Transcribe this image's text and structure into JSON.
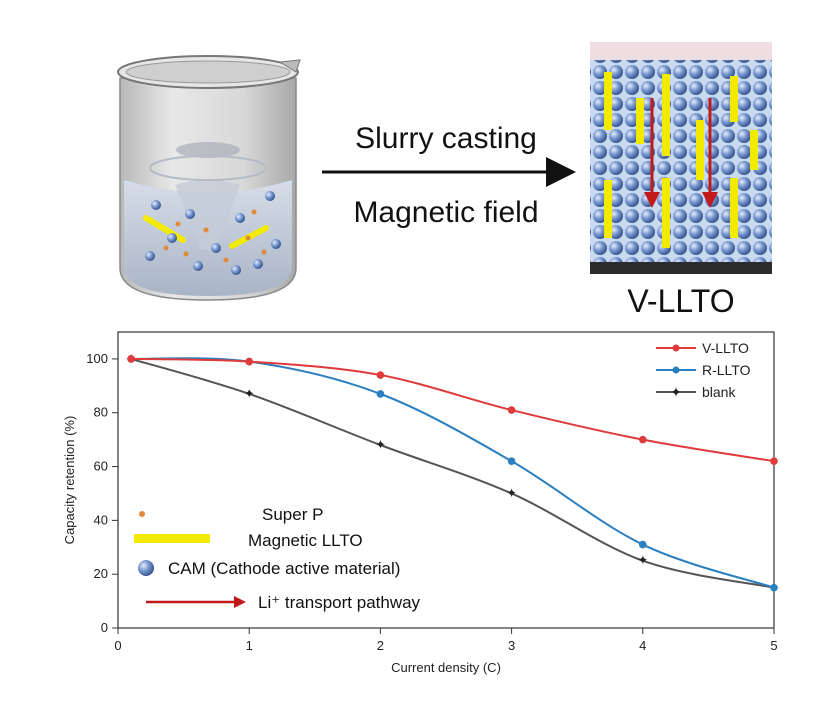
{
  "top": {
    "process_label_1": "Slurry casting",
    "process_label_2": "Magnetic field",
    "electrode_label": "V-LLTO"
  },
  "legend_materials": {
    "super_p": "Super P",
    "magnetic_llto": "Magnetic LLTO",
    "cam": "CAM  (Cathode active material)",
    "li_pathway": "Li⁺ transport pathway"
  },
  "colors": {
    "v_llto": "#e03a3a",
    "r_llto": "#2a7fc0",
    "blank": "#555555",
    "llto_rod": "#f2ea00",
    "super_p": "#e08a3a",
    "arrow": "#c21a1a",
    "cam_sphere": "#5a7ec0"
  },
  "chart_data": {
    "type": "line",
    "title": "",
    "xlabel": "Current density (C)",
    "ylabel": "Capacity retention (%)",
    "xlim": [
      0,
      5
    ],
    "ylim": [
      0,
      110
    ],
    "xticks": [
      0,
      1,
      2,
      3,
      4,
      5
    ],
    "yticks": [
      0,
      20,
      40,
      60,
      80,
      100
    ],
    "x": [
      0.1,
      1,
      2,
      3,
      4,
      5
    ],
    "series": [
      {
        "name": "V-LLTO",
        "values": [
          100,
          99,
          94,
          81,
          70,
          62
        ]
      },
      {
        "name": "R-LLTO",
        "values": [
          100,
          99,
          87,
          62,
          31,
          15
        ]
      },
      {
        "name": "blank",
        "values": [
          100,
          87,
          68,
          50,
          25,
          15
        ]
      }
    ],
    "legend_position": "top-right"
  }
}
